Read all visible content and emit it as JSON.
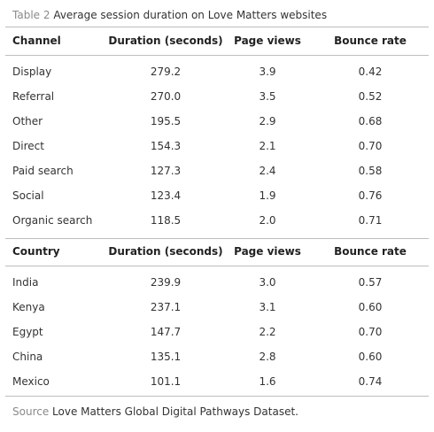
{
  "caption": {
    "label": "Table 2",
    "title": "Average session duration on Love Matters websites"
  },
  "sections": [
    {
      "header": [
        "Channel",
        "Duration (seconds)",
        "Page views",
        "Bounce rate"
      ],
      "rows": [
        [
          "Display",
          "279.2",
          "3.9",
          "0.42"
        ],
        [
          "Referral",
          "270.0",
          "3.5",
          "0.52"
        ],
        [
          "Other",
          "195.5",
          "2.9",
          "0.68"
        ],
        [
          "Direct",
          "154.3",
          "2.1",
          "0.70"
        ],
        [
          "Paid search",
          "127.3",
          "2.4",
          "0.58"
        ],
        [
          "Social",
          "123.4",
          "1.9",
          "0.76"
        ],
        [
          "Organic search",
          "118.5",
          "2.0",
          "0.71"
        ]
      ]
    },
    {
      "header": [
        "Country",
        "Duration (seconds)",
        "Page views",
        "Bounce rate"
      ],
      "rows": [
        [
          "India",
          "239.9",
          "3.0",
          "0.57"
        ],
        [
          "Kenya",
          "237.1",
          "3.1",
          "0.60"
        ],
        [
          "Egypt",
          "147.7",
          "2.2",
          "0.70"
        ],
        [
          "China",
          "135.1",
          "2.8",
          "0.60"
        ],
        [
          "Mexico",
          "101.1",
          "1.6",
          "0.74"
        ]
      ]
    }
  ],
  "source": {
    "label": "Source",
    "text": "Love Matters Global Digital Pathways Dataset."
  }
}
